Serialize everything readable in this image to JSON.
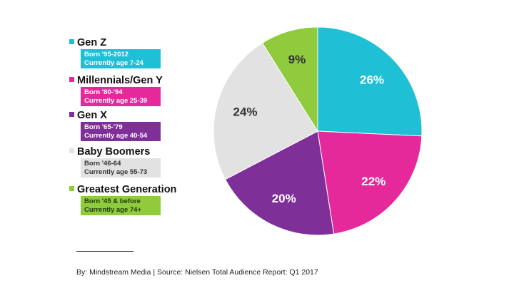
{
  "chart_data": {
    "type": "pie",
    "start": "top, clockwise",
    "slices": [
      {
        "name": "Gen Z",
        "value": 26,
        "label": "26%",
        "color": "#1fbfd6",
        "label_color": "#ffffff",
        "detail": [
          "Born '95-2012",
          "Currently age 7-24"
        ],
        "detail_color": "#ffffff"
      },
      {
        "name": "Millennials/Gen Y",
        "value": 22,
        "label": "22%",
        "color": "#e5299b",
        "label_color": "#ffffff",
        "detail": [
          "Born '80-'94",
          "Currently age 25-39"
        ],
        "detail_color": "#ffffff"
      },
      {
        "name": "Gen X",
        "value": 20,
        "label": "20%",
        "color": "#7f2f98",
        "label_color": "#ffffff",
        "detail": [
          "Born '65-'79",
          "Currently age 40-54"
        ],
        "detail_color": "#ffffff"
      },
      {
        "name": "Baby Boomers",
        "value": 24,
        "label": "24%",
        "color": "#e2e2e2",
        "label_color": "#333333",
        "detail": [
          "Born '46-64",
          "Currently age 55-73"
        ],
        "detail_color": "#333333"
      },
      {
        "name": "Greatest Generation",
        "value": 9,
        "label": "9%",
        "color": "#8fcb3c",
        "label_color": "#333333",
        "detail": [
          "Born '45 & before",
          "Currently age 74+"
        ],
        "detail_color": "#1f3a10"
      }
    ],
    "legend_placement": "left"
  },
  "footer": {
    "source": "By: Mindstream Media | Source: Nielsen Total Audience Report: Q1 2017"
  }
}
